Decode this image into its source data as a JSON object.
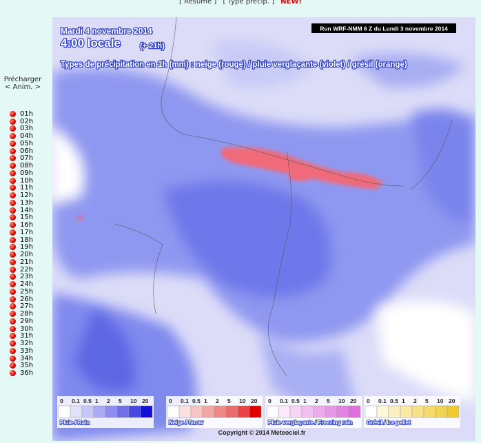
{
  "nav": {
    "links": [
      "[ Résumé ]",
      "[ Type précip. ]"
    ],
    "badge": "NEW!"
  },
  "sidebar": {
    "preload": "Précharger",
    "anim": "< Anim. >",
    "hours": [
      "01h",
      "02h",
      "03h",
      "04h",
      "05h",
      "06h",
      "07h",
      "08h",
      "09h",
      "10h",
      "11h",
      "12h",
      "13h",
      "14h",
      "15h",
      "16h",
      "17h",
      "18h",
      "19h",
      "20h",
      "21h",
      "22h",
      "23h",
      "24h",
      "25h",
      "26h",
      "27h",
      "28h",
      "29h",
      "30h",
      "31h",
      "32h",
      "33h",
      "34h",
      "35h",
      "36h"
    ]
  },
  "map": {
    "date": "Mardi 4 novembre 2014",
    "time": "4:00 locale",
    "offset": "(+ 21h)",
    "subtitle": "Types de précipitation en 1h (mm) : neige (rouge) / pluie verglaçante (violet) / grésil (orange)",
    "run": "Run WRF-NMM 6 Z du Lundi 3 novembre 2014",
    "copyright": "Copyright © 2014 Meteociel.fr"
  },
  "legends": [
    {
      "ticks": [
        "0",
        "0.1",
        "0.5",
        "1",
        "2",
        "5",
        "10",
        "20"
      ],
      "title": "Pluie / Rain"
    },
    {
      "ticks": [
        "0",
        "0.1",
        "0.5",
        "1",
        "2",
        "5",
        "10",
        "20"
      ],
      "title": "Neige / Snow"
    },
    {
      "ticks": [
        "0",
        "0.1",
        "0.5",
        "1",
        "2",
        "5",
        "10",
        "20"
      ],
      "title": "Pluie verglaçante / Freezing rain"
    },
    {
      "ticks": [
        "0",
        "0.1",
        "0.5",
        "1",
        "2",
        "5",
        "10",
        "20"
      ],
      "title": "Grésil / Ice pellet"
    }
  ]
}
